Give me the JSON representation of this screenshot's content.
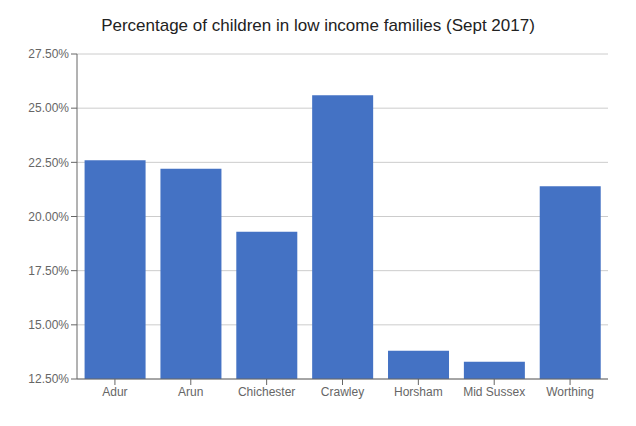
{
  "chart_data": {
    "type": "bar",
    "title": "Percentage of children in low income families (Sept 2017)",
    "categories": [
      "Adur",
      "Arun",
      "Chichester",
      "Crawley",
      "Horsham",
      "Mid Sussex",
      "Worthing"
    ],
    "values": [
      0.226,
      0.222,
      0.193,
      0.256,
      0.138,
      0.133,
      0.214
    ],
    "color": "#4472C4",
    "ylim": [
      0.125,
      0.275
    ],
    "yticks": [
      {
        "value": 0.125,
        "label": "12.50%"
      },
      {
        "value": 0.15,
        "label": "15.00%"
      },
      {
        "value": 0.175,
        "label": "17.50%"
      },
      {
        "value": 0.2,
        "label": "20.00%"
      },
      {
        "value": 0.225,
        "label": "22.50%"
      },
      {
        "value": 0.25,
        "label": "25.00%"
      },
      {
        "value": 0.275,
        "label": "27.50%"
      }
    ],
    "grid": true
  }
}
